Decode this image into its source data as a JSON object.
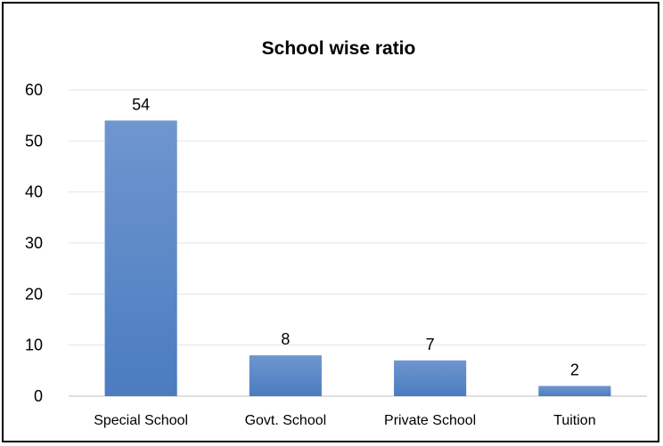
{
  "chart_data": {
    "type": "bar",
    "title": "School wise ratio",
    "categories": [
      "Special School",
      "Govt. School",
      "Private School",
      "Tuition"
    ],
    "values": [
      54,
      8,
      7,
      2
    ],
    "ylim": [
      0,
      60
    ],
    "yticks": [
      0,
      10,
      20,
      30,
      40,
      50,
      60
    ],
    "grid": true,
    "data_labels": true,
    "bar_color": "#4a7cc0",
    "bar_color_top": "#6f96cf"
  }
}
